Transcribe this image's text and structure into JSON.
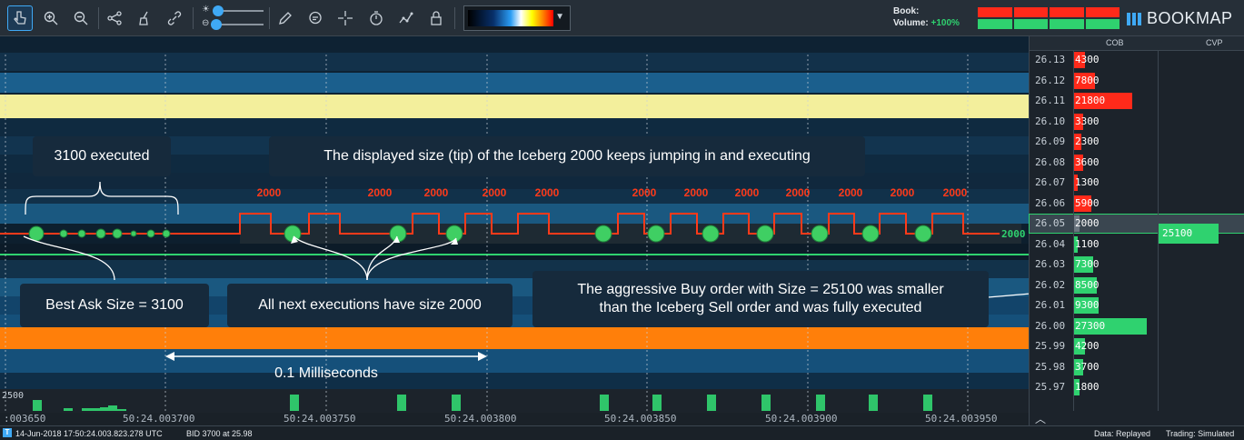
{
  "toolbar": {
    "tools": [
      "pointer-icon",
      "zoom-in-icon",
      "zoom-out-icon",
      "share-icon",
      "broom-icon",
      "link-icon",
      "pencil-icon",
      "chat-icon",
      "crosshair-icon",
      "timer-icon",
      "indicator-icon",
      "lock-icon"
    ],
    "book_label": "Book:",
    "volume_label": "Volume:",
    "volume_pct": "+100%",
    "logo_text": "BOOKMAP",
    "accent_color": "#3fa9f5"
  },
  "chart": {
    "icebergs": [
      "2000",
      "2000",
      "2000",
      "2000",
      "2000",
      "2000",
      "2000",
      "2000",
      "2000",
      "2000",
      "2000",
      "2000"
    ],
    "ask_line_label": "2000",
    "volume_axis_label": "2500",
    "time_labels": [
      ":003650",
      "50:24.003700",
      "50:24.003750",
      "50:24.003800",
      "50:24.003850",
      "50:24.003900",
      "50:24.003950"
    ],
    "callouts": {
      "executed": "3100 executed",
      "tip": "The displayed size (tip) of the Iceberg 2000 keeps jumping in and executing",
      "best_ask": "Best Ask Size = 3100",
      "next_exec": "All next executions have size 2000",
      "aggressive_1": "The aggressive Buy order with Size = 25100 was smaller",
      "aggressive_2": "than the Iceberg Sell order and was fully executed",
      "interval": "0.1 Milliseconds"
    }
  },
  "ladder": {
    "cob_label": "COB",
    "cvp_label": "CVP",
    "rows": [
      {
        "price": "26.13",
        "size": "4300",
        "side": "ask",
        "fill": 0.06
      },
      {
        "price": "26.12",
        "size": "7800",
        "side": "ask",
        "fill": 0.11
      },
      {
        "price": "26.11",
        "size": "21800",
        "side": "ask",
        "fill": 0.31
      },
      {
        "price": "26.10",
        "size": "3300",
        "side": "ask",
        "fill": 0.05
      },
      {
        "price": "26.09",
        "size": "2300",
        "side": "ask",
        "fill": 0.04
      },
      {
        "price": "26.08",
        "size": "3600",
        "side": "ask",
        "fill": 0.05
      },
      {
        "price": "26.07",
        "size": "1300",
        "side": "ask",
        "fill": 0.02
      },
      {
        "price": "26.06",
        "size": "5900",
        "side": "ask",
        "fill": 0.09
      },
      {
        "price": "26.05",
        "size": "2000",
        "side": "cur",
        "fill": 0.03
      },
      {
        "price": "26.04",
        "size": "1100",
        "side": "bid",
        "fill": 0.02
      },
      {
        "price": "26.03",
        "size": "7300",
        "side": "bid",
        "fill": 0.1
      },
      {
        "price": "26.02",
        "size": "8500",
        "side": "bid",
        "fill": 0.12
      },
      {
        "price": "26.01",
        "size": "9300",
        "side": "bid",
        "fill": 0.13
      },
      {
        "price": "26.00",
        "size": "27300",
        "side": "bid",
        "fill": 0.39
      },
      {
        "price": "25.99",
        "size": "4200",
        "side": "bid",
        "fill": 0.06
      },
      {
        "price": "25.98",
        "size": "3700",
        "side": "bid",
        "fill": 0.05
      },
      {
        "price": "25.97",
        "size": "1800",
        "side": "bid",
        "fill": 0.03
      }
    ],
    "cvp_value": "25100"
  },
  "status": {
    "time": "14-Jun-2018 17:50:24.003.823.278 UTC",
    "bid": "BID 3700 at 25.98",
    "data_mode": "Data: Replayed",
    "trading_mode": "Trading: Simulated"
  }
}
